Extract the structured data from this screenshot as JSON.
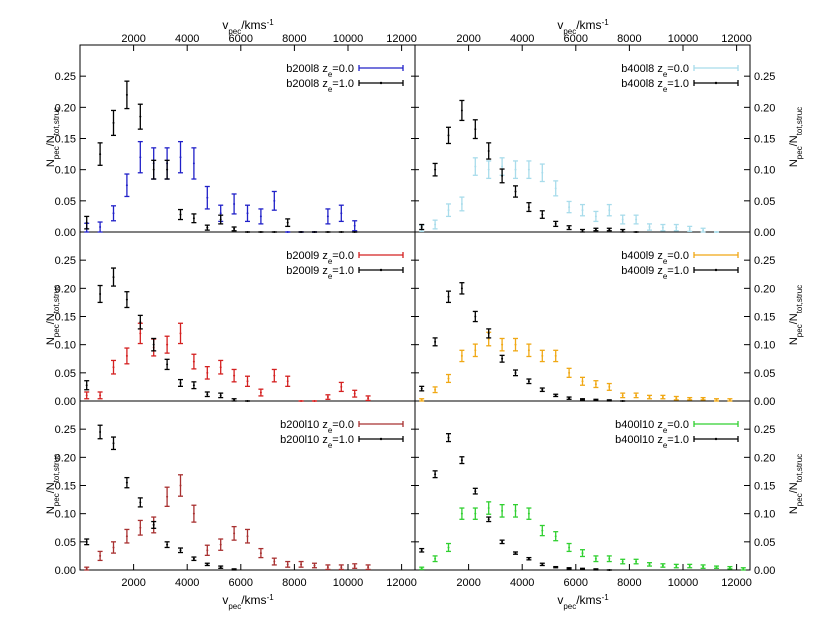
{
  "chart_data": {
    "type": "scatter",
    "style": "errorbars",
    "layout": "3 rows x 2 columns of panels sharing axes",
    "x_axis": {
      "label_main": "v",
      "label_sub": "pec",
      "label_unit": "/kms",
      "label_sup": "-1",
      "range": [
        0,
        12500
      ],
      "ticks": [
        2000,
        4000,
        6000,
        8000,
        10000,
        12000
      ],
      "tick_labels": [
        "2000",
        "4000",
        "6000",
        "8000",
        "10000",
        "12000"
      ]
    },
    "y_axis": {
      "label_main": "N",
      "label_sub1": "pec",
      "label_sep": "/N",
      "label_sub2": "tot,struc",
      "range": [
        0,
        0.3
      ],
      "ticks": [
        0,
        0.05,
        0.1,
        0.15,
        0.2,
        0.25
      ],
      "tick_labels": [
        "0.00",
        "0.05",
        "0.10",
        "0.15",
        "0.20",
        "0.25"
      ]
    },
    "panels": [
      {
        "id": "b200l8",
        "series": [
          {
            "name_prefix": "b200l8 z",
            "name_sub": "e",
            "name_suffix": "=0.0",
            "color": "#2020c8",
            "x": [
              250,
              750,
              1250,
              1750,
              2250,
              2750,
              3250,
              3750,
              4250,
              4750,
              5250,
              5750,
              6250,
              6750,
              7250,
              7750,
              8250,
              8750,
              9250,
              9750,
              10250
            ],
            "y": [
              0.006,
              0.008,
              0.03,
              0.075,
              0.12,
              0.11,
              0.11,
              0.12,
              0.11,
              0.055,
              0.03,
              0.045,
              0.03,
              0.025,
              0.05,
              0,
              0,
              0,
              0.025,
              0.03,
              0.01
            ],
            "err": [
              0.008,
              0.008,
              0.012,
              0.018,
              0.025,
              0.025,
              0.025,
              0.025,
              0.025,
              0.018,
              0.013,
              0.016,
              0.013,
              0.012,
              0.015,
              0,
              0,
              0,
              0.012,
              0.013,
              0.008
            ]
          },
          {
            "name_prefix": "b200l8 z",
            "name_sub": "e",
            "name_suffix": "=1.0",
            "color": "#000000",
            "x": [
              250,
              750,
              1250,
              1750,
              2250,
              2750,
              3250,
              3750,
              4250,
              4750,
              5250,
              5750,
              6250,
              6750,
              7250,
              7750,
              8250,
              8750,
              9250,
              9750,
              10250
            ],
            "y": [
              0.015,
              0.125,
              0.175,
              0.22,
              0.185,
              0.1,
              0.1,
              0.028,
              0.022,
              0.007,
              0.02,
              0.005,
              0,
              0,
              0,
              0.015,
              0,
              0,
              0,
              0,
              0
            ],
            "err": [
              0.01,
              0.018,
              0.02,
              0.022,
              0.02,
              0.015,
              0.015,
              0.008,
              0.007,
              0.004,
              0.007,
              0.003,
              0,
              0,
              0,
              0.006,
              0,
              0,
              0,
              0,
              0
            ]
          }
        ]
      },
      {
        "id": "b400l8",
        "series": [
          {
            "name_prefix": "b400l8 z",
            "name_sub": "e",
            "name_suffix": "=0.0",
            "color": "#a8dceb",
            "x": [
              250,
              750,
              1250,
              1750,
              2250,
              2750,
              3250,
              3750,
              4250,
              4750,
              5250,
              5750,
              6250,
              6750,
              7250,
              7750,
              8250,
              8750,
              9250,
              9750,
              10250,
              10750,
              11250
            ],
            "y": [
              0.006,
              0.012,
              0.035,
              0.045,
              0.105,
              0.1,
              0.105,
              0.1,
              0.1,
              0.095,
              0.07,
              0.04,
              0.035,
              0.025,
              0.035,
              0.02,
              0.02,
              0.008,
              0.007,
              0.007,
              0.005,
              0.003,
              0
            ],
            "err": [
              0.005,
              0.007,
              0.01,
              0.011,
              0.014,
              0.014,
              0.014,
              0.014,
              0.014,
              0.014,
              0.012,
              0.009,
              0.009,
              0.008,
              0.009,
              0.007,
              0.007,
              0.005,
              0.005,
              0.005,
              0.004,
              0.003,
              0
            ]
          },
          {
            "name_prefix": "b400l8 z",
            "name_sub": "e",
            "name_suffix": "=1.0",
            "color": "#000000",
            "x": [
              250,
              750,
              1250,
              1750,
              2250,
              2750,
              3250,
              3750,
              4250,
              4750,
              5250,
              5750,
              6250,
              6750,
              7250,
              7750,
              8250
            ],
            "y": [
              0.008,
              0.1,
              0.155,
              0.195,
              0.165,
              0.13,
              0.09,
              0.065,
              0.04,
              0.028,
              0.013,
              0.007,
              0.002,
              0.004,
              0.004,
              0.002,
              0
            ],
            "err": [
              0.004,
              0.01,
              0.013,
              0.016,
              0.015,
              0.013,
              0.011,
              0.009,
              0.007,
              0.006,
              0.004,
              0.003,
              0.002,
              0.002,
              0.002,
              0.002,
              0
            ]
          }
        ]
      },
      {
        "id": "b200l9",
        "series": [
          {
            "name_prefix": "b200l9 z",
            "name_sub": "e",
            "name_suffix": "=0.0",
            "color": "#d42020",
            "x": [
              250,
              750,
              1250,
              1750,
              2250,
              2750,
              3250,
              3750,
              4250,
              4750,
              5250,
              5750,
              6250,
              6750,
              7250,
              7750,
              8250,
              8750,
              9250,
              9750,
              10250,
              10750
            ],
            "y": [
              0.01,
              0.01,
              0.06,
              0.08,
              0.12,
              0.095,
              0.1,
              0.12,
              0.07,
              0.05,
              0.06,
              0.045,
              0.035,
              0.015,
              0.045,
              0.035,
              0,
              0,
              0.007,
              0.025,
              0.013,
              0.005
            ],
            "err": [
              0.006,
              0.006,
              0.012,
              0.014,
              0.018,
              0.015,
              0.015,
              0.018,
              0.013,
              0.011,
              0.012,
              0.011,
              0.009,
              0.006,
              0.011,
              0.009,
              0,
              0,
              0.004,
              0.008,
              0.006,
              0.004
            ]
          },
          {
            "name_prefix": "b200l9 z",
            "name_sub": "e",
            "name_suffix": "=1.0",
            "color": "#000000",
            "x": [
              250,
              750,
              1250,
              1750,
              2250,
              2750,
              3250,
              3750,
              4250,
              4750,
              5250,
              5750,
              6250
            ],
            "y": [
              0.028,
              0.19,
              0.22,
              0.18,
              0.14,
              0.1,
              0.065,
              0.032,
              0.028,
              0.012,
              0.01,
              0.002,
              0
            ],
            "err": [
              0.008,
              0.015,
              0.016,
              0.014,
              0.012,
              0.011,
              0.009,
              0.006,
              0.006,
              0.004,
              0.004,
              0.002,
              0
            ]
          }
        ]
      },
      {
        "id": "b400l9",
        "series": [
          {
            "name_prefix": "b400l9 z",
            "name_sub": "e",
            "name_suffix": "=0.0",
            "color": "#f0a814",
            "x": [
              250,
              750,
              1250,
              1750,
              2250,
              2750,
              3250,
              3750,
              4250,
              4750,
              5250,
              5750,
              6250,
              6750,
              7250,
              7750,
              8250,
              8750,
              9250,
              9750,
              10250,
              10750,
              11250,
              11750
            ],
            "y": [
              0.002,
              0.02,
              0.04,
              0.08,
              0.09,
              0.11,
              0.1,
              0.1,
              0.09,
              0.08,
              0.08,
              0.05,
              0.035,
              0.03,
              0.025,
              0.01,
              0.01,
              0.007,
              0.007,
              0.005,
              0.004,
              0.004,
              0.002,
              0.002
            ],
            "err": [
              0.002,
              0.005,
              0.007,
              0.01,
              0.011,
              0.012,
              0.011,
              0.011,
              0.011,
              0.01,
              0.01,
              0.008,
              0.007,
              0.006,
              0.006,
              0.004,
              0.004,
              0.003,
              0.003,
              0.003,
              0.002,
              0.002,
              0.002,
              0.002
            ]
          },
          {
            "name_prefix": "b400l9 z",
            "name_sub": "e",
            "name_suffix": "=1.0",
            "color": "#000000",
            "x": [
              250,
              750,
              1250,
              1750,
              2250,
              2750,
              3250,
              3750,
              4250,
              4750,
              5250,
              5750,
              6250,
              6750,
              7250,
              7750
            ],
            "y": [
              0.022,
              0.105,
              0.185,
              0.2,
              0.15,
              0.12,
              0.075,
              0.05,
              0.035,
              0.02,
              0.01,
              0.005,
              0.003,
              0.002,
              0.001,
              0
            ],
            "err": [
              0.004,
              0.007,
              0.01,
              0.01,
              0.009,
              0.008,
              0.006,
              0.005,
              0.004,
              0.003,
              0.002,
              0.002,
              0.001,
              0.001,
              0.001,
              0
            ]
          }
        ]
      },
      {
        "id": "b200l10",
        "series": [
          {
            "name_prefix": "b200l10 z",
            "name_sub": "e",
            "name_suffix": "=0.0",
            "color": "#a83030",
            "x": [
              250,
              750,
              1250,
              1750,
              2250,
              2750,
              3250,
              3750,
              4250,
              4750,
              5250,
              5750,
              6250,
              6750,
              7250,
              7750,
              8250,
              8750,
              9250,
              9750,
              10250,
              10750
            ],
            "y": [
              0.002,
              0.025,
              0.04,
              0.06,
              0.075,
              0.08,
              0.13,
              0.15,
              0.1,
              0.035,
              0.045,
              0.065,
              0.06,
              0.03,
              0.015,
              0.01,
              0.01,
              0.008,
              0.005,
              0.005,
              0.007,
              0.005
            ],
            "err": [
              0.003,
              0.008,
              0.01,
              0.012,
              0.013,
              0.014,
              0.017,
              0.019,
              0.015,
              0.009,
              0.01,
              0.012,
              0.012,
              0.008,
              0.006,
              0.005,
              0.005,
              0.004,
              0.004,
              0.004,
              0.004,
              0.004
            ]
          },
          {
            "name_prefix": "b200l10 z",
            "name_sub": "e",
            "name_suffix": "=1.0",
            "color": "#000000",
            "x": [
              250,
              750,
              1250,
              1750,
              2250,
              2750,
              3250,
              3750,
              4250,
              4750,
              5250,
              5750
            ],
            "y": [
              0.05,
              0.245,
              0.225,
              0.155,
              0.12,
              0.08,
              0.045,
              0.035,
              0.02,
              0.01,
              0.005,
              0.001
            ],
            "err": [
              0.005,
              0.012,
              0.011,
              0.009,
              0.008,
              0.006,
              0.005,
              0.004,
              0.003,
              0.002,
              0.002,
              0.001
            ]
          }
        ]
      },
      {
        "id": "b400l10",
        "series": [
          {
            "name_prefix": "b400l10 z",
            "name_sub": "e",
            "name_suffix": "=0.0",
            "color": "#30d030",
            "x": [
              250,
              750,
              1250,
              1750,
              2250,
              2750,
              3250,
              3750,
              4250,
              4750,
              5250,
              5750,
              6250,
              6750,
              7250,
              7750,
              8250,
              8750,
              9250,
              9750,
              10250,
              10750,
              11250,
              11750,
              12250
            ],
            "y": [
              0.003,
              0.02,
              0.04,
              0.1,
              0.1,
              0.11,
              0.105,
              0.105,
              0.1,
              0.07,
              0.06,
              0.04,
              0.03,
              0.02,
              0.02,
              0.015,
              0.015,
              0.01,
              0.008,
              0.007,
              0.007,
              0.006,
              0.005,
              0.004,
              0.002
            ],
            "err": [
              0.002,
              0.005,
              0.007,
              0.01,
              0.01,
              0.011,
              0.011,
              0.011,
              0.01,
              0.009,
              0.008,
              0.007,
              0.006,
              0.005,
              0.005,
              0.004,
              0.004,
              0.003,
              0.003,
              0.003,
              0.003,
              0.003,
              0.002,
              0.002,
              0.002
            ]
          },
          {
            "name_prefix": "b400l10 z",
            "name_sub": "e",
            "name_suffix": "=1.0",
            "color": "#000000",
            "x": [
              250,
              750,
              1250,
              1750,
              2250,
              2750,
              3250,
              3750,
              4250,
              4750,
              5250,
              5750,
              6250,
              6750,
              7250
            ],
            "y": [
              0.035,
              0.17,
              0.235,
              0.195,
              0.14,
              0.09,
              0.05,
              0.03,
              0.02,
              0.01,
              0.005,
              0.003,
              0.002,
              0.001,
              0
            ],
            "err": [
              0.003,
              0.006,
              0.007,
              0.006,
              0.005,
              0.004,
              0.003,
              0.002,
              0.002,
              0.002,
              0.001,
              0.001,
              0.001,
              0.001,
              0
            ]
          }
        ]
      }
    ]
  }
}
